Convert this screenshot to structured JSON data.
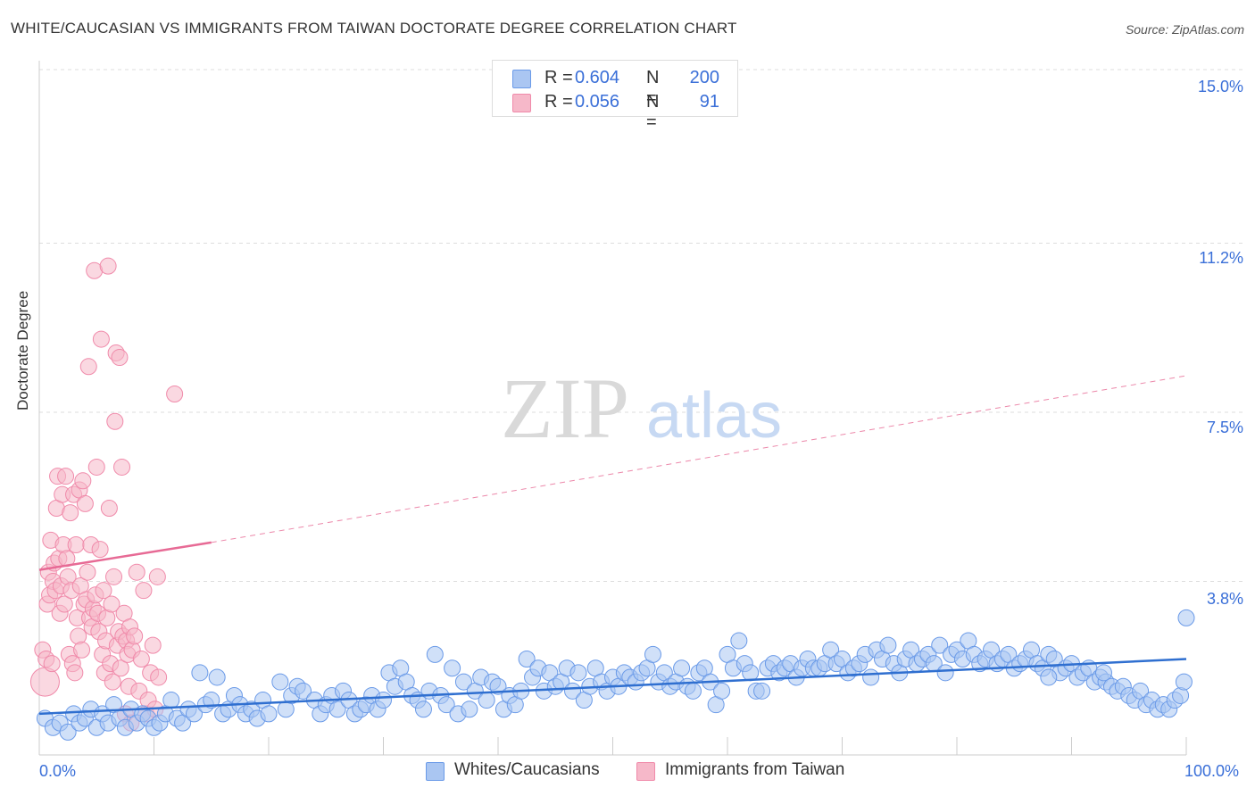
{
  "title": "WHITE/CAUCASIAN VS IMMIGRANTS FROM TAIWAN DOCTORATE DEGREE CORRELATION CHART",
  "source": "Source: ZipAtlas.com",
  "watermark": {
    "zip": "ZIP",
    "atlas": "atlas"
  },
  "legend": {
    "series1": {
      "r_label": "R =",
      "r_value": "0.604",
      "n_label": "N =",
      "n_value": "200",
      "color": "#aac6f2"
    },
    "series2": {
      "r_label": "R =",
      "r_value": "0.056",
      "n_label": "N =",
      "n_value": "91",
      "color": "#f6b8c9"
    }
  },
  "chart_data": {
    "type": "scatter",
    "title": "WHITE/CAUCASIAN VS IMMIGRANTS FROM TAIWAN DOCTORATE DEGREE CORRELATION CHART",
    "xlabel": "",
    "ylabel": "Doctorate Degree",
    "xlim": [
      0,
      100
    ],
    "ylim": [
      0,
      15
    ],
    "x_tick_labels": [
      "0.0%",
      "100.0%"
    ],
    "y_ticks": [
      3.8,
      7.5,
      11.2,
      15.0
    ],
    "y_tick_labels": [
      "3.8%",
      "7.5%",
      "11.2%",
      "15.0%"
    ],
    "grid": true,
    "series": [
      {
        "name": "Whites/Caucasians",
        "color": "#6a9ae8",
        "trend": {
          "x": [
            0,
            100
          ],
          "y": [
            0.9,
            2.1
          ],
          "style": "solid",
          "color": "#2f6fd0"
        },
        "points": [
          [
            0.5,
            0.8
          ],
          [
            1.2,
            0.6
          ],
          [
            1.8,
            0.7
          ],
          [
            2.5,
            0.5
          ],
          [
            3.0,
            0.9
          ],
          [
            3.5,
            0.7
          ],
          [
            4.0,
            0.8
          ],
          [
            4.5,
            1.0
          ],
          [
            5.0,
            0.6
          ],
          [
            5.5,
            0.9
          ],
          [
            6.0,
            0.7
          ],
          [
            6.5,
            1.1
          ],
          [
            7.0,
            0.8
          ],
          [
            7.5,
            0.6
          ],
          [
            8.0,
            1.0
          ],
          [
            8.5,
            0.7
          ],
          [
            9.0,
            0.9
          ],
          [
            9.5,
            0.8
          ],
          [
            10.0,
            0.6
          ],
          [
            10.5,
            0.7
          ],
          [
            11.0,
            0.9
          ],
          [
            11.5,
            1.2
          ],
          [
            12.0,
            0.8
          ],
          [
            12.5,
            0.7
          ],
          [
            13.0,
            1.0
          ],
          [
            13.5,
            0.9
          ],
          [
            14.0,
            1.8
          ],
          [
            14.5,
            1.1
          ],
          [
            15.0,
            1.2
          ],
          [
            15.5,
            1.7
          ],
          [
            16.0,
            0.9
          ],
          [
            16.5,
            1.0
          ],
          [
            17.0,
            1.3
          ],
          [
            17.5,
            1.1
          ],
          [
            18.0,
            0.9
          ],
          [
            18.5,
            1.0
          ],
          [
            19.0,
            0.8
          ],
          [
            19.5,
            1.2
          ],
          [
            20.0,
            0.9
          ],
          [
            21.0,
            1.6
          ],
          [
            21.5,
            1.0
          ],
          [
            22.0,
            1.3
          ],
          [
            22.5,
            1.5
          ],
          [
            23.0,
            1.4
          ],
          [
            24.0,
            1.2
          ],
          [
            24.5,
            0.9
          ],
          [
            25.0,
            1.1
          ],
          [
            25.5,
            1.3
          ],
          [
            26.0,
            1.0
          ],
          [
            26.5,
            1.4
          ],
          [
            27.0,
            1.2
          ],
          [
            27.5,
            0.9
          ],
          [
            28.0,
            1.0
          ],
          [
            28.5,
            1.1
          ],
          [
            29.0,
            1.3
          ],
          [
            29.5,
            1.0
          ],
          [
            30.0,
            1.2
          ],
          [
            30.5,
            1.8
          ],
          [
            31.0,
            1.5
          ],
          [
            31.5,
            1.9
          ],
          [
            32.0,
            1.6
          ],
          [
            32.5,
            1.3
          ],
          [
            33.0,
            1.2
          ],
          [
            33.5,
            1.0
          ],
          [
            34.0,
            1.4
          ],
          [
            34.5,
            2.2
          ],
          [
            35.0,
            1.3
          ],
          [
            35.5,
            1.1
          ],
          [
            36.0,
            1.9
          ],
          [
            36.5,
            0.9
          ],
          [
            37.0,
            1.6
          ],
          [
            37.5,
            1.0
          ],
          [
            38.0,
            1.4
          ],
          [
            38.5,
            1.7
          ],
          [
            39.0,
            1.2
          ],
          [
            39.5,
            1.6
          ],
          [
            40.0,
            1.5
          ],
          [
            40.5,
            1.0
          ],
          [
            41.0,
            1.3
          ],
          [
            41.5,
            1.1
          ],
          [
            42.0,
            1.4
          ],
          [
            42.5,
            2.1
          ],
          [
            43.0,
            1.7
          ],
          [
            43.5,
            1.9
          ],
          [
            44.0,
            1.4
          ],
          [
            44.5,
            1.8
          ],
          [
            45.0,
            1.5
          ],
          [
            45.5,
            1.6
          ],
          [
            46.0,
            1.9
          ],
          [
            46.5,
            1.4
          ],
          [
            47.0,
            1.8
          ],
          [
            47.5,
            1.2
          ],
          [
            48.0,
            1.5
          ],
          [
            48.5,
            1.9
          ],
          [
            49.0,
            1.6
          ],
          [
            49.5,
            1.4
          ],
          [
            50.0,
            1.7
          ],
          [
            50.5,
            1.5
          ],
          [
            51.0,
            1.8
          ],
          [
            51.5,
            1.7
          ],
          [
            52.0,
            1.6
          ],
          [
            52.5,
            1.8
          ],
          [
            53.0,
            1.9
          ],
          [
            53.5,
            2.2
          ],
          [
            54.0,
            1.6
          ],
          [
            54.5,
            1.8
          ],
          [
            55.0,
            1.5
          ],
          [
            55.5,
            1.6
          ],
          [
            56.0,
            1.9
          ],
          [
            56.5,
            1.5
          ],
          [
            57.0,
            1.4
          ],
          [
            57.5,
            1.8
          ],
          [
            58.0,
            1.9
          ],
          [
            58.5,
            1.6
          ],
          [
            59.0,
            1.1
          ],
          [
            59.5,
            1.4
          ],
          [
            60.0,
            2.2
          ],
          [
            60.5,
            1.9
          ],
          [
            61.0,
            2.5
          ],
          [
            61.5,
            2.0
          ],
          [
            62.0,
            1.8
          ],
          [
            62.5,
            1.4
          ],
          [
            63.0,
            1.4
          ],
          [
            63.5,
            1.9
          ],
          [
            64.0,
            2.0
          ],
          [
            64.5,
            1.8
          ],
          [
            65.0,
            1.9
          ],
          [
            65.5,
            2.0
          ],
          [
            66.0,
            1.7
          ],
          [
            66.5,
            1.9
          ],
          [
            67.0,
            2.1
          ],
          [
            67.5,
            1.9
          ],
          [
            68.0,
            1.9
          ],
          [
            68.5,
            2.0
          ],
          [
            69.0,
            2.3
          ],
          [
            69.5,
            2.0
          ],
          [
            70.0,
            2.1
          ],
          [
            70.5,
            1.8
          ],
          [
            71.0,
            1.9
          ],
          [
            71.5,
            2.0
          ],
          [
            72.0,
            2.2
          ],
          [
            72.5,
            1.7
          ],
          [
            73.0,
            2.3
          ],
          [
            73.5,
            2.1
          ],
          [
            74.0,
            2.4
          ],
          [
            74.5,
            2.0
          ],
          [
            75.0,
            1.8
          ],
          [
            75.5,
            2.1
          ],
          [
            76.0,
            2.3
          ],
          [
            76.5,
            2.0
          ],
          [
            77.0,
            2.1
          ],
          [
            77.5,
            2.2
          ],
          [
            78.0,
            2.0
          ],
          [
            78.5,
            2.4
          ],
          [
            79.0,
            1.8
          ],
          [
            79.5,
            2.2
          ],
          [
            80.0,
            2.3
          ],
          [
            80.5,
            2.1
          ],
          [
            81.0,
            2.5
          ],
          [
            81.5,
            2.2
          ],
          [
            82.0,
            2.0
          ],
          [
            82.5,
            2.1
          ],
          [
            83.0,
            2.3
          ],
          [
            83.5,
            2.0
          ],
          [
            84.0,
            2.1
          ],
          [
            84.5,
            2.2
          ],
          [
            85.0,
            1.9
          ],
          [
            85.5,
            2.0
          ],
          [
            86.0,
            2.1
          ],
          [
            86.5,
            2.3
          ],
          [
            87.0,
            2.0
          ],
          [
            87.5,
            1.9
          ],
          [
            88.0,
            2.2
          ],
          [
            88.5,
            2.1
          ],
          [
            89.0,
            1.8
          ],
          [
            89.5,
            1.9
          ],
          [
            90.0,
            2.0
          ],
          [
            90.5,
            1.7
          ],
          [
            91.0,
            1.8
          ],
          [
            91.5,
            1.9
          ],
          [
            92.0,
            1.6
          ],
          [
            92.5,
            1.7
          ],
          [
            93.0,
            1.6
          ],
          [
            93.5,
            1.5
          ],
          [
            94.0,
            1.4
          ],
          [
            94.5,
            1.5
          ],
          [
            95.0,
            1.3
          ],
          [
            95.5,
            1.2
          ],
          [
            96.0,
            1.4
          ],
          [
            96.5,
            1.1
          ],
          [
            97.0,
            1.2
          ],
          [
            97.5,
            1.0
          ],
          [
            98.0,
            1.1
          ],
          [
            98.5,
            1.0
          ],
          [
            99.0,
            1.2
          ],
          [
            99.5,
            1.3
          ],
          [
            99.8,
            1.6
          ],
          [
            100.0,
            3.0
          ],
          [
            88.0,
            1.7
          ],
          [
            92.8,
            1.8
          ]
        ]
      },
      {
        "name": "Immigrants from Taiwan",
        "color": "#f08aaa",
        "trend": {
          "x": [
            0,
            15
          ],
          "y": [
            4.05,
            4.65
          ],
          "style": "solid",
          "color": "#e76a95",
          "extension": {
            "x": [
              15,
              100
            ],
            "y": [
              4.65,
              8.3
            ],
            "style": "dashed"
          }
        },
        "points": [
          [
            0.3,
            2.3
          ],
          [
            0.5,
            1.6
          ],
          [
            0.6,
            2.1
          ],
          [
            0.7,
            3.3
          ],
          [
            0.8,
            4.0
          ],
          [
            0.9,
            3.5
          ],
          [
            1.0,
            4.7
          ],
          [
            1.1,
            2.0
          ],
          [
            1.2,
            3.8
          ],
          [
            1.3,
            4.2
          ],
          [
            1.4,
            3.6
          ],
          [
            1.5,
            5.4
          ],
          [
            1.6,
            6.1
          ],
          [
            1.7,
            4.3
          ],
          [
            1.8,
            3.1
          ],
          [
            1.9,
            3.7
          ],
          [
            2.0,
            5.7
          ],
          [
            2.1,
            4.6
          ],
          [
            2.2,
            3.3
          ],
          [
            2.3,
            6.1
          ],
          [
            2.4,
            4.3
          ],
          [
            2.5,
            3.9
          ],
          [
            2.6,
            2.2
          ],
          [
            2.7,
            5.3
          ],
          [
            2.8,
            3.6
          ],
          [
            2.9,
            2.0
          ],
          [
            3.0,
            5.7
          ],
          [
            3.1,
            1.8
          ],
          [
            3.2,
            4.6
          ],
          [
            3.3,
            3.0
          ],
          [
            3.4,
            2.6
          ],
          [
            3.5,
            5.8
          ],
          [
            3.6,
            3.7
          ],
          [
            3.7,
            2.3
          ],
          [
            3.8,
            6.0
          ],
          [
            3.9,
            3.3
          ],
          [
            4.0,
            5.5
          ],
          [
            4.1,
            3.4
          ],
          [
            4.2,
            4.0
          ],
          [
            4.3,
            8.5
          ],
          [
            4.4,
            3.0
          ],
          [
            4.5,
            4.6
          ],
          [
            4.6,
            2.8
          ],
          [
            4.7,
            3.2
          ],
          [
            4.8,
            10.6
          ],
          [
            4.9,
            3.5
          ],
          [
            5.0,
            6.3
          ],
          [
            5.1,
            3.1
          ],
          [
            5.2,
            2.7
          ],
          [
            5.3,
            4.5
          ],
          [
            5.4,
            9.1
          ],
          [
            5.5,
            2.2
          ],
          [
            5.6,
            3.6
          ],
          [
            5.7,
            1.8
          ],
          [
            5.8,
            2.5
          ],
          [
            5.9,
            3.0
          ],
          [
            6.0,
            10.7
          ],
          [
            6.1,
            5.4
          ],
          [
            6.2,
            2.0
          ],
          [
            6.3,
            3.3
          ],
          [
            6.4,
            1.6
          ],
          [
            6.5,
            3.9
          ],
          [
            6.6,
            7.3
          ],
          [
            6.7,
            8.8
          ],
          [
            6.8,
            2.4
          ],
          [
            6.9,
            2.7
          ],
          [
            7.0,
            8.7
          ],
          [
            7.1,
            1.9
          ],
          [
            7.2,
            6.3
          ],
          [
            7.3,
            2.6
          ],
          [
            7.4,
            3.1
          ],
          [
            7.5,
            0.9
          ],
          [
            7.6,
            2.5
          ],
          [
            7.7,
            2.2
          ],
          [
            7.8,
            1.5
          ],
          [
            7.9,
            2.8
          ],
          [
            8.0,
            0.7
          ],
          [
            8.1,
            2.3
          ],
          [
            8.3,
            2.6
          ],
          [
            8.5,
            4.0
          ],
          [
            8.7,
            1.4
          ],
          [
            8.9,
            2.1
          ],
          [
            9.1,
            3.6
          ],
          [
            9.3,
            0.9
          ],
          [
            9.5,
            1.2
          ],
          [
            9.7,
            1.8
          ],
          [
            9.9,
            2.4
          ],
          [
            10.1,
            1.0
          ],
          [
            10.3,
            3.9
          ],
          [
            10.4,
            1.7
          ],
          [
            11.8,
            7.9
          ]
        ]
      }
    ]
  },
  "bottom_legend": {
    "series1": "Whites/Caucasians",
    "series2": "Immigrants from Taiwan"
  }
}
